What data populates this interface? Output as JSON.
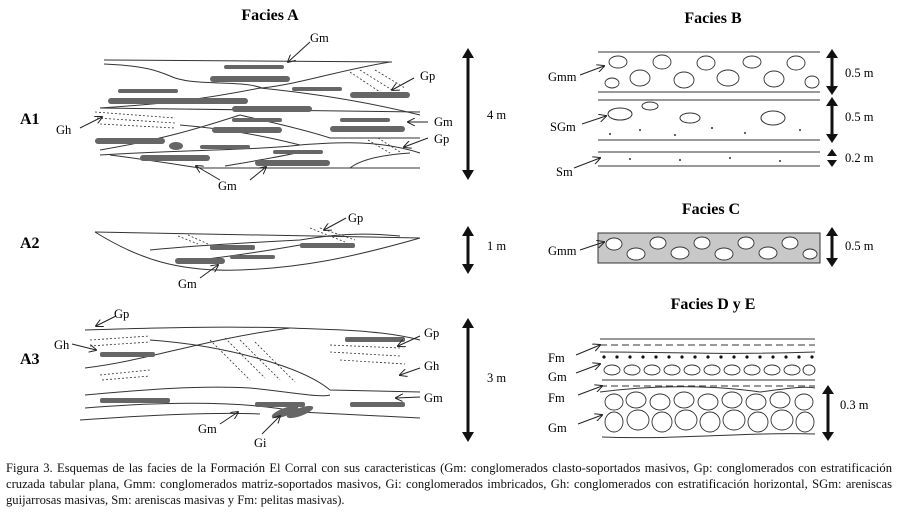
{
  "facies_a": {
    "title": "Facies A",
    "a1": {
      "label": "A1",
      "scale": "4 m",
      "codes": [
        "Gm",
        "Gp",
        "Gh",
        "Gm",
        "Gp",
        "Gm"
      ]
    },
    "a2": {
      "label": "A2",
      "scale": "1 m",
      "codes": [
        "Gp",
        "Gm"
      ]
    },
    "a3": {
      "label": "A3",
      "scale": "3 m",
      "codes": [
        "Gp",
        "Gh",
        "Gp",
        "Gh",
        "Gm",
        "Gm",
        "Gi"
      ]
    }
  },
  "facies_b": {
    "title": "Facies B",
    "codes": [
      "Gmm",
      "SGm",
      "Sm"
    ],
    "scales": [
      "0.5 m",
      "0.5 m",
      "0.2 m"
    ]
  },
  "facies_c": {
    "title": "Facies C",
    "codes": [
      "Gmm"
    ],
    "scales": [
      "0.5 m"
    ]
  },
  "facies_de": {
    "title": "Facies D y E",
    "codes": [
      "Fm",
      "Gm",
      "Fm",
      "Gm"
    ],
    "scales": [
      "0.3 m"
    ]
  },
  "caption": "Figura 3. Esquemas de las facies de la Formación El Corral con sus caracteristicas (Gm: conglomerados clasto-soportados masivos, Gp: conglomerados con estratificación cruzada tabular plana, Gmm: conglomerados matriz-soportados masivos, Gi: conglomerados imbricados, Gh: conglomerados con estratificación horizontal, SGm: areniscas guijarrosas masivas, Sm: areniscas masivas y Fm: pelitas masivas)."
}
